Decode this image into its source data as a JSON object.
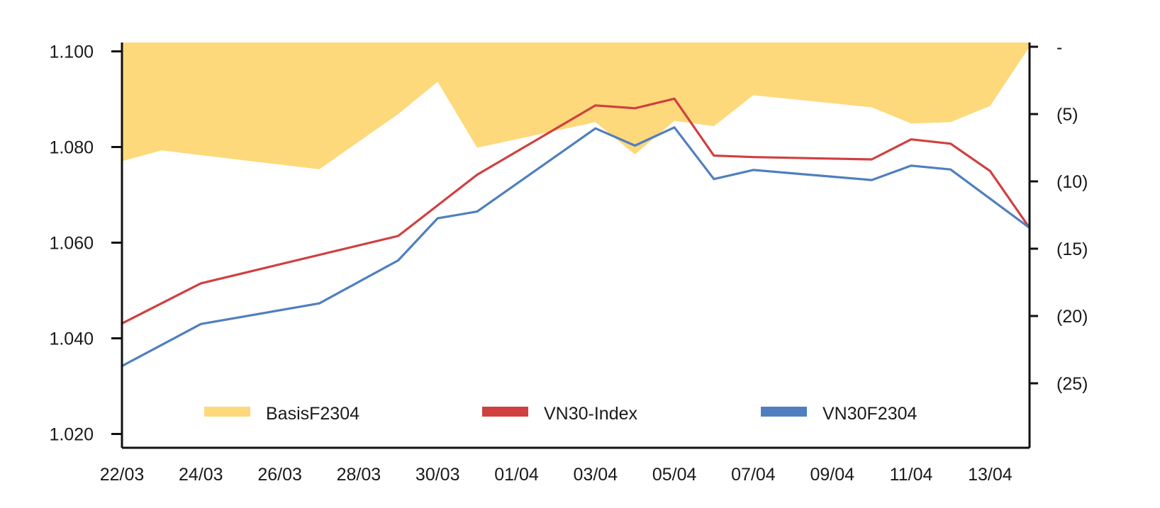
{
  "chart_data": {
    "type": "line",
    "x_dates": [
      "22/03",
      "23/03",
      "27/03",
      "29/03",
      "30/03",
      "31/03",
      "03/04",
      "04/04",
      "05/04",
      "06/04",
      "07/04",
      "10/04",
      "11/04",
      "12/04",
      "13/04",
      "14/04"
    ],
    "x_tick_labels": [
      "22/03",
      "24/03",
      "26/03",
      "28/03",
      "30/03",
      "01/04",
      "03/04",
      "05/04",
      "07/04",
      "09/04",
      "11/04",
      "13/04"
    ],
    "xlim": [
      "22/03",
      "14/04"
    ],
    "left_axis": {
      "ylim": [
        1016,
        1100
      ],
      "tick_values": [
        1020,
        1040,
        1060,
        1080,
        1100
      ],
      "tick_labels": [
        "1.020",
        "1.040",
        "1.060",
        "1.080",
        "1.100"
      ]
    },
    "right_axis": {
      "ylim": [
        -30,
        0
      ],
      "inverted": true,
      "tick_values": [
        0,
        -5,
        -10,
        -15,
        -20,
        -25
      ],
      "tick_labels": [
        "-",
        "(5)",
        "(10)",
        "(15)",
        "(20)",
        "(25)"
      ]
    },
    "series": [
      {
        "name": "BasisF2304",
        "kind": "area",
        "axis": "right",
        "color": "#FDD97C",
        "points": [
          [
            "22/03",
            -8.5
          ],
          [
            "23/03",
            -7.7
          ],
          [
            "27/03",
            -9.1
          ],
          [
            "29/03",
            -5.0
          ],
          [
            "30/03",
            -2.6
          ],
          [
            "31/03",
            -7.5
          ],
          [
            "03/04",
            -5.6
          ],
          [
            "04/04",
            -8.0
          ],
          [
            "05/04",
            -5.5
          ],
          [
            "06/04",
            -5.9
          ],
          [
            "07/04",
            -3.6
          ],
          [
            "10/04",
            -4.5
          ],
          [
            "11/04",
            -5.7
          ],
          [
            "12/04",
            -5.6
          ],
          [
            "13/04",
            -4.4
          ],
          [
            "14/04",
            0
          ]
        ]
      },
      {
        "name": "VN30-Index",
        "kind": "line",
        "axis": "left",
        "color": "#D04040",
        "points": [
          [
            "22/03",
            1043.1
          ],
          [
            "24/03",
            1051.5
          ],
          [
            "29/03",
            1061.4
          ],
          [
            "31/03",
            1074.2
          ],
          [
            "03/04",
            1088.7
          ],
          [
            "04/04",
            1088.1
          ],
          [
            "05/04",
            1090.1
          ],
          [
            "06/04",
            1078.2
          ],
          [
            "07/04",
            1077.9
          ],
          [
            "10/04",
            1077.4
          ],
          [
            "11/04",
            1081.6
          ],
          [
            "12/04",
            1080.7
          ],
          [
            "13/04",
            1075.0
          ],
          [
            "14/04",
            1063.1
          ]
        ]
      },
      {
        "name": "VN30F2304",
        "kind": "line",
        "axis": "left",
        "color": "#4F7FBF",
        "points": [
          [
            "22/03",
            1034.2
          ],
          [
            "24/03",
            1043.0
          ],
          [
            "27/03",
            1047.3
          ],
          [
            "29/03",
            1056.3
          ],
          [
            "30/03",
            1065.1
          ],
          [
            "31/03",
            1066.5
          ],
          [
            "03/04",
            1083.9
          ],
          [
            "04/04",
            1080.3
          ],
          [
            "05/04",
            1084.1
          ],
          [
            "06/04",
            1073.3
          ],
          [
            "07/04",
            1075.2
          ],
          [
            "10/04",
            1073.1
          ],
          [
            "11/04",
            1076.1
          ],
          [
            "12/04",
            1075.3
          ],
          [
            "14/04",
            1063.1
          ]
        ]
      }
    ],
    "legend": {
      "placement": "bottom-inside",
      "entries": [
        "BasisF2304",
        "VN30-Index",
        "VN30F2304"
      ]
    }
  }
}
